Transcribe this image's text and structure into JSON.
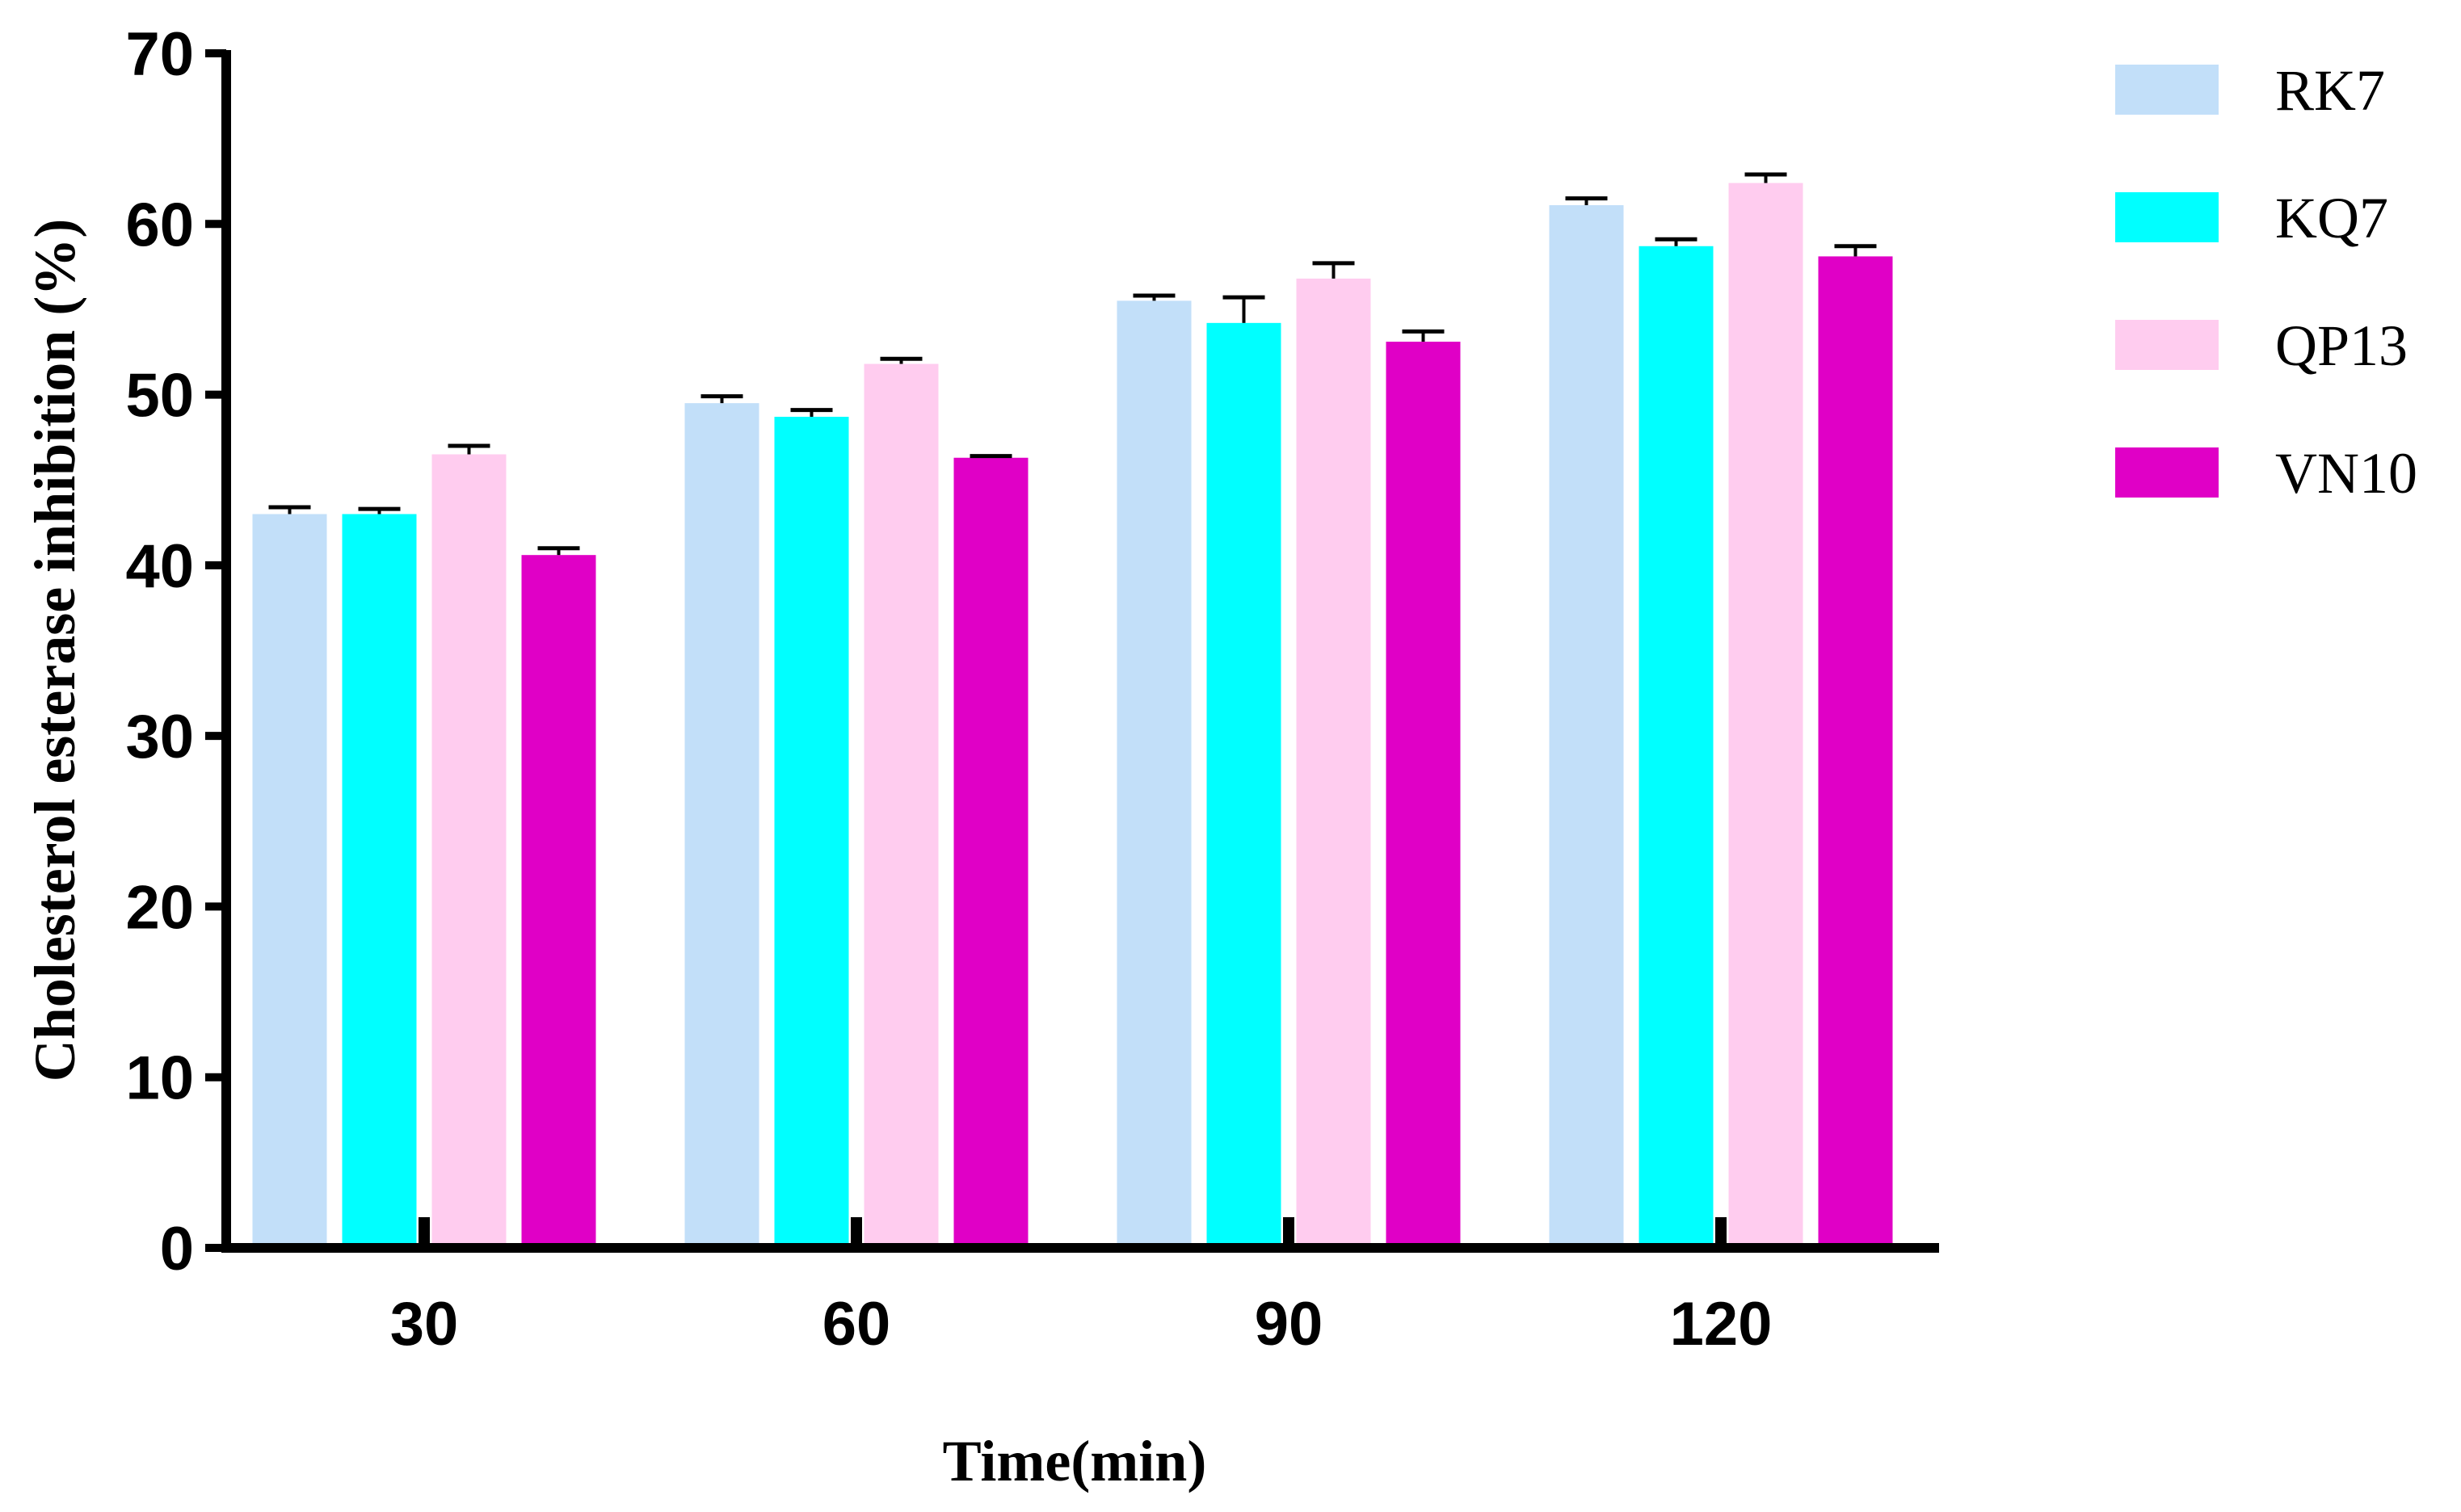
{
  "chart_data": {
    "type": "bar",
    "title": "",
    "xlabel": "Time(min)",
    "ylabel": "Cholesterol esterase inhibition (%)",
    "ylim": [
      0,
      70
    ],
    "yticks": [
      0,
      10,
      20,
      30,
      40,
      50,
      60,
      70
    ],
    "categories": [
      "30",
      "60",
      "90",
      "120"
    ],
    "legend_position": "top-right",
    "grid": false,
    "error_bars": true,
    "series": [
      {
        "name": "RK7",
        "color": "#c2dff9",
        "values": [
          43.0,
          49.5,
          55.5,
          61.1
        ],
        "errors": [
          0.4,
          0.4,
          0.3,
          0.4
        ]
      },
      {
        "name": "KQ7",
        "color": "#00ffff",
        "values": [
          43.0,
          48.7,
          54.2,
          58.7
        ],
        "errors": [
          0.3,
          0.4,
          1.5,
          0.4
        ]
      },
      {
        "name": "QP13",
        "color": "#ffccef",
        "values": [
          46.5,
          51.8,
          56.8,
          62.4
        ],
        "errors": [
          0.5,
          0.3,
          0.9,
          0.5
        ]
      },
      {
        "name": "VN10",
        "color": "#e000c6",
        "values": [
          40.6,
          46.3,
          53.1,
          58.1
        ],
        "errors": [
          0.4,
          0.1,
          0.6,
          0.6
        ]
      }
    ]
  }
}
